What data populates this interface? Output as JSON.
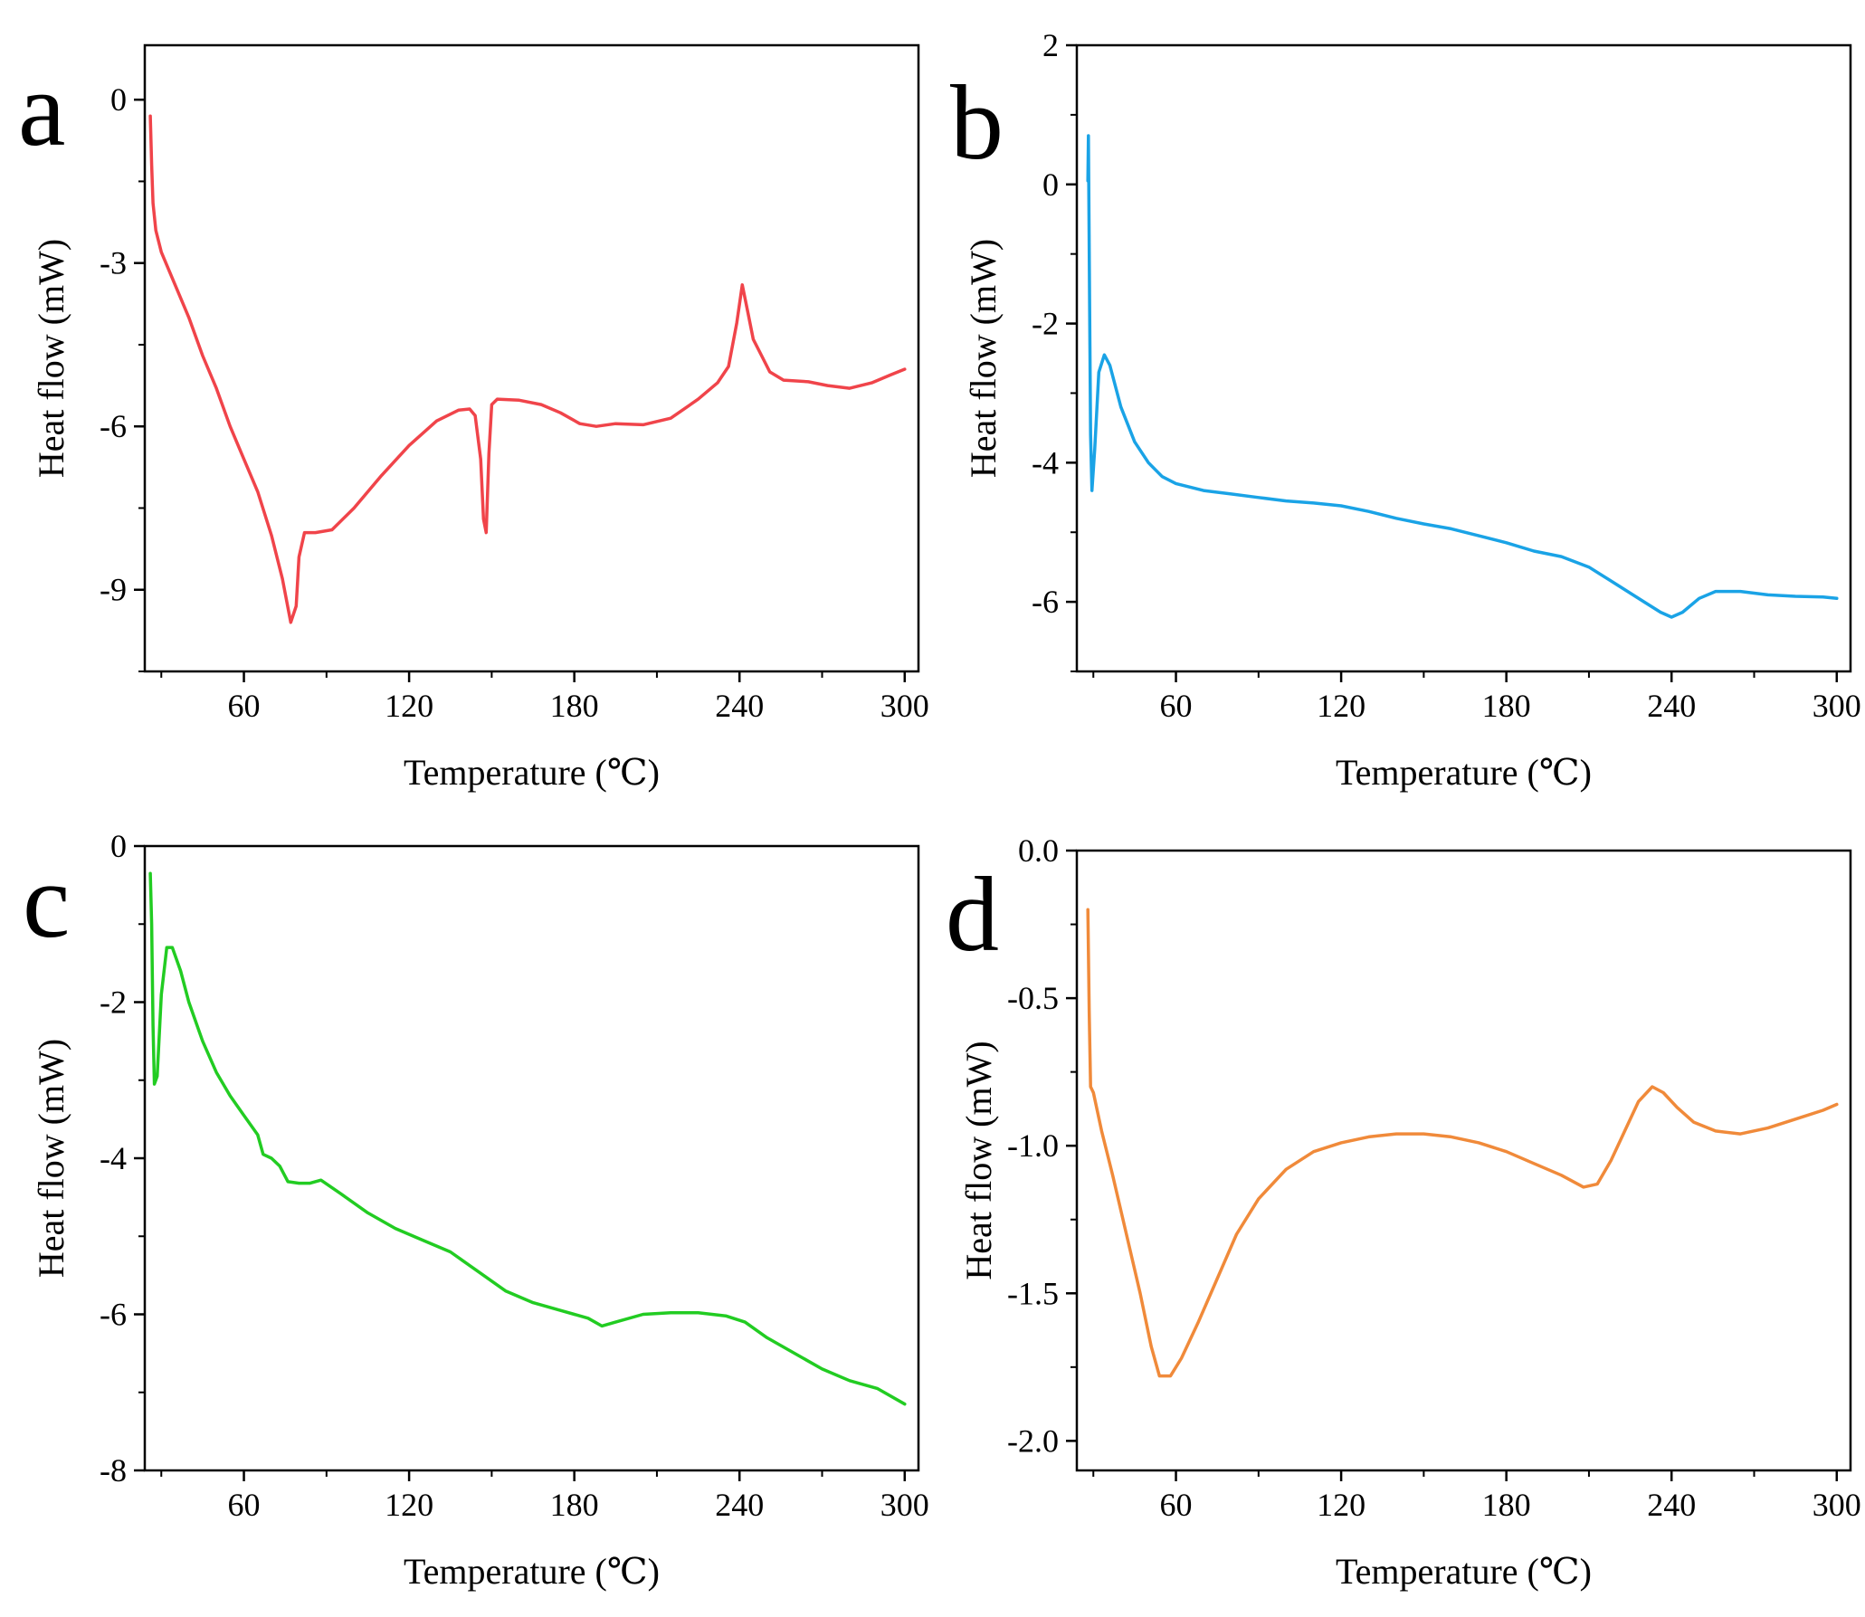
{
  "figure": {
    "background": "#ffffff"
  },
  "chart_data": [
    {
      "panel": "a",
      "type": "line",
      "color": "#f0444a",
      "xlabel": "Temperature (℃)",
      "ylabel": "Heat flow (mW)",
      "xlim": [
        24,
        305
      ],
      "ylim": [
        -10.5,
        1
      ],
      "xticks": [
        60,
        120,
        180,
        240,
        300
      ],
      "xtick_labels": [
        "60",
        "120",
        "180",
        "240",
        "300"
      ],
      "yticks": [
        0,
        -3,
        -6,
        -9
      ],
      "ytick_labels": [
        "0",
        "-3",
        "-6",
        "-9"
      ],
      "series": [
        {
          "name": "a",
          "points": [
            [
              26,
              -0.3
            ],
            [
              26.5,
              -1.2
            ],
            [
              27,
              -1.9
            ],
            [
              28,
              -2.4
            ],
            [
              30,
              -2.8
            ],
            [
              35,
              -3.4
            ],
            [
              40,
              -4.0
            ],
            [
              45,
              -4.7
            ],
            [
              50,
              -5.3
            ],
            [
              55,
              -6.0
            ],
            [
              60,
              -6.6
            ],
            [
              65,
              -7.2
            ],
            [
              70,
              -8.0
            ],
            [
              74,
              -8.8
            ],
            [
              77,
              -9.6
            ],
            [
              79,
              -9.3
            ],
            [
              80,
              -8.4
            ],
            [
              82,
              -7.95
            ],
            [
              86,
              -7.95
            ],
            [
              92,
              -7.9
            ],
            [
              100,
              -7.5
            ],
            [
              110,
              -6.9
            ],
            [
              120,
              -6.35
            ],
            [
              130,
              -5.9
            ],
            [
              138,
              -5.7
            ],
            [
              142,
              -5.68
            ],
            [
              144,
              -5.8
            ],
            [
              146,
              -6.6
            ],
            [
              147,
              -7.7
            ],
            [
              148,
              -7.95
            ],
            [
              149,
              -6.5
            ],
            [
              150,
              -5.6
            ],
            [
              152,
              -5.5
            ],
            [
              160,
              -5.52
            ],
            [
              168,
              -5.6
            ],
            [
              175,
              -5.75
            ],
            [
              182,
              -5.95
            ],
            [
              188,
              -6.0
            ],
            [
              195,
              -5.95
            ],
            [
              205,
              -5.97
            ],
            [
              215,
              -5.85
            ],
            [
              225,
              -5.5
            ],
            [
              232,
              -5.2
            ],
            [
              236,
              -4.9
            ],
            [
              239,
              -4.1
            ],
            [
              241,
              -3.4
            ],
            [
              243,
              -3.9
            ],
            [
              245,
              -4.4
            ],
            [
              248,
              -4.7
            ],
            [
              251,
              -5.0
            ],
            [
              256,
              -5.15
            ],
            [
              265,
              -5.18
            ],
            [
              272,
              -5.25
            ],
            [
              280,
              -5.3
            ],
            [
              288,
              -5.2
            ],
            [
              295,
              -5.05
            ],
            [
              300,
              -4.95
            ]
          ]
        }
      ]
    },
    {
      "panel": "b",
      "type": "line",
      "color": "#1aa3e6",
      "xlabel": "Temperature (℃)",
      "ylabel": "Heat flow (mW)",
      "xlim": [
        24,
        305
      ],
      "ylim": [
        -7,
        2
      ],
      "xticks": [
        60,
        120,
        180,
        240,
        300
      ],
      "xtick_labels": [
        "60",
        "120",
        "180",
        "240",
        "300"
      ],
      "yticks": [
        2,
        0,
        -2,
        -4,
        -6
      ],
      "ytick_labels": [
        "2",
        "0",
        "-2",
        "-4",
        "-6"
      ],
      "series": [
        {
          "name": "b",
          "points": [
            [
              28,
              0.05
            ],
            [
              28.2,
              0.7
            ],
            [
              28.6,
              -1.5
            ],
            [
              29,
              -3.6
            ],
            [
              29.5,
              -4.4
            ],
            [
              30.5,
              -3.8
            ],
            [
              32,
              -2.7
            ],
            [
              34,
              -2.45
            ],
            [
              36,
              -2.6
            ],
            [
              40,
              -3.2
            ],
            [
              45,
              -3.7
            ],
            [
              50,
              -4.0
            ],
            [
              55,
              -4.2
            ],
            [
              60,
              -4.3
            ],
            [
              70,
              -4.4
            ],
            [
              80,
              -4.45
            ],
            [
              90,
              -4.5
            ],
            [
              100,
              -4.55
            ],
            [
              110,
              -4.58
            ],
            [
              120,
              -4.62
            ],
            [
              130,
              -4.7
            ],
            [
              140,
              -4.8
            ],
            [
              150,
              -4.88
            ],
            [
              160,
              -4.95
            ],
            [
              170,
              -5.05
            ],
            [
              180,
              -5.15
            ],
            [
              190,
              -5.27
            ],
            [
              200,
              -5.35
            ],
            [
              210,
              -5.5
            ],
            [
              220,
              -5.75
            ],
            [
              230,
              -6.0
            ],
            [
              236,
              -6.15
            ],
            [
              240,
              -6.22
            ],
            [
              244,
              -6.15
            ],
            [
              250,
              -5.95
            ],
            [
              256,
              -5.85
            ],
            [
              265,
              -5.85
            ],
            [
              275,
              -5.9
            ],
            [
              285,
              -5.92
            ],
            [
              295,
              -5.93
            ],
            [
              300,
              -5.95
            ]
          ]
        }
      ]
    },
    {
      "panel": "c",
      "type": "line",
      "color": "#22cc22",
      "xlabel": "Temperature (℃)",
      "ylabel": "Heat flow (mW)",
      "xlim": [
        24,
        305
      ],
      "ylim": [
        -8,
        0
      ],
      "xticks": [
        60,
        120,
        180,
        240,
        300
      ],
      "xtick_labels": [
        "60",
        "120",
        "180",
        "240",
        "300"
      ],
      "yticks": [
        0,
        -2,
        -4,
        -6,
        -8
      ],
      "ytick_labels": [
        "0",
        "-2",
        "-4",
        "-6",
        "-8"
      ],
      "series": [
        {
          "name": "c",
          "points": [
            [
              26,
              -0.35
            ],
            [
              26.5,
              -1.0
            ],
            [
              27,
              -2.3
            ],
            [
              27.5,
              -3.05
            ],
            [
              28.5,
              -2.95
            ],
            [
              30,
              -1.9
            ],
            [
              32,
              -1.3
            ],
            [
              34,
              -1.3
            ],
            [
              37,
              -1.6
            ],
            [
              40,
              -2.0
            ],
            [
              45,
              -2.5
            ],
            [
              50,
              -2.9
            ],
            [
              55,
              -3.2
            ],
            [
              60,
              -3.45
            ],
            [
              65,
              -3.7
            ],
            [
              67,
              -3.95
            ],
            [
              70,
              -4.0
            ],
            [
              73,
              -4.1
            ],
            [
              76,
              -4.3
            ],
            [
              80,
              -4.32
            ],
            [
              84,
              -4.32
            ],
            [
              88,
              -4.28
            ],
            [
              95,
              -4.45
            ],
            [
              105,
              -4.7
            ],
            [
              115,
              -4.9
            ],
            [
              125,
              -5.05
            ],
            [
              135,
              -5.2
            ],
            [
              145,
              -5.45
            ],
            [
              155,
              -5.7
            ],
            [
              165,
              -5.85
            ],
            [
              175,
              -5.95
            ],
            [
              185,
              -6.05
            ],
            [
              190,
              -6.15
            ],
            [
              195,
              -6.1
            ],
            [
              205,
              -6.0
            ],
            [
              215,
              -5.98
            ],
            [
              225,
              -5.98
            ],
            [
              235,
              -6.02
            ],
            [
              242,
              -6.1
            ],
            [
              250,
              -6.3
            ],
            [
              260,
              -6.5
            ],
            [
              270,
              -6.7
            ],
            [
              280,
              -6.85
            ],
            [
              290,
              -6.95
            ],
            [
              300,
              -7.15
            ]
          ]
        }
      ]
    },
    {
      "panel": "d",
      "type": "line",
      "color": "#f08a3a",
      "xlabel": "Temperature (℃)",
      "ylabel": "Heat flow (mW)",
      "xlim": [
        24,
        305
      ],
      "ylim": [
        -2.1,
        0
      ],
      "xticks": [
        60,
        120,
        180,
        240,
        300
      ],
      "xtick_labels": [
        "60",
        "120",
        "180",
        "240",
        "300"
      ],
      "yticks": [
        0,
        -0.5,
        -1,
        -1.5,
        -2
      ],
      "ytick_labels": [
        "0.0",
        "-0.5",
        "-1.0",
        "-1.5",
        "-2.0"
      ],
      "series": [
        {
          "name": "d",
          "points": [
            [
              28,
              -0.2
            ],
            [
              28.5,
              -0.55
            ],
            [
              29,
              -0.8
            ],
            [
              30,
              -0.82
            ],
            [
              33,
              -0.95
            ],
            [
              37,
              -1.1
            ],
            [
              42,
              -1.3
            ],
            [
              47,
              -1.5
            ],
            [
              51,
              -1.68
            ],
            [
              54,
              -1.78
            ],
            [
              58,
              -1.78
            ],
            [
              62,
              -1.72
            ],
            [
              68,
              -1.6
            ],
            [
              75,
              -1.45
            ],
            [
              82,
              -1.3
            ],
            [
              90,
              -1.18
            ],
            [
              100,
              -1.08
            ],
            [
              110,
              -1.02
            ],
            [
              120,
              -0.99
            ],
            [
              130,
              -0.97
            ],
            [
              140,
              -0.96
            ],
            [
              150,
              -0.96
            ],
            [
              160,
              -0.97
            ],
            [
              170,
              -0.99
            ],
            [
              180,
              -1.02
            ],
            [
              190,
              -1.06
            ],
            [
              200,
              -1.1
            ],
            [
              208,
              -1.14
            ],
            [
              213,
              -1.13
            ],
            [
              218,
              -1.05
            ],
            [
              223,
              -0.95
            ],
            [
              228,
              -0.85
            ],
            [
              233,
              -0.8
            ],
            [
              237,
              -0.82
            ],
            [
              242,
              -0.87
            ],
            [
              248,
              -0.92
            ],
            [
              256,
              -0.95
            ],
            [
              265,
              -0.96
            ],
            [
              275,
              -0.94
            ],
            [
              285,
              -0.91
            ],
            [
              295,
              -0.88
            ],
            [
              300,
              -0.86
            ]
          ]
        }
      ]
    }
  ]
}
